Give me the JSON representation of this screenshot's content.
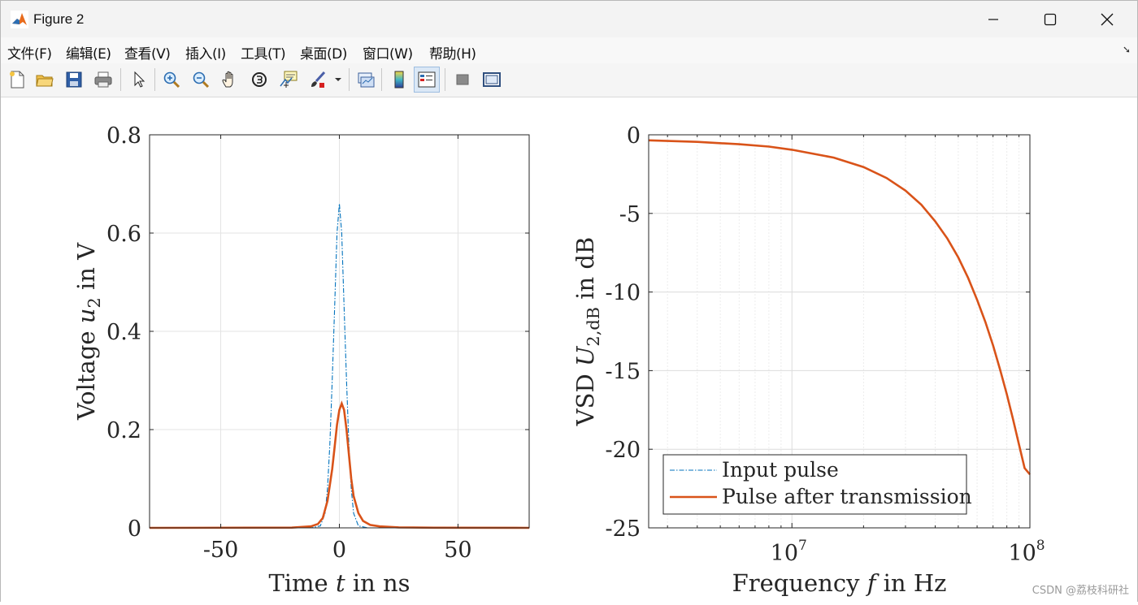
{
  "window": {
    "title": "Figure 2"
  },
  "menu": [
    "文件(F)",
    "编辑(E)",
    "查看(V)",
    "插入(I)",
    "工具(T)",
    "桌面(D)",
    "窗口(W)",
    "帮助(H)"
  ],
  "toolbar": {
    "icons": [
      "new-figure-icon",
      "open-file-icon",
      "save-icon",
      "print-icon",
      "select-arrow-icon",
      "zoom-in-icon",
      "zoom-out-icon",
      "pan-hand-icon",
      "rotate-3d-icon",
      "data-cursor-icon",
      "brush-icon",
      "link-plot-icon",
      "colorbar-icon",
      "legend-icon",
      "hide-plot-tools-icon",
      "show-plot-tools-icon"
    ]
  },
  "watermark": "CSDN @荔枝科研社",
  "chart_data": [
    {
      "type": "line",
      "xlabel": "Time t in ns",
      "ylabel": "Voltage u2 in V",
      "xlim": [
        -80,
        80
      ],
      "ylim": [
        0,
        0.8
      ],
      "xticks": [
        -50,
        0,
        50
      ],
      "xtick_labels": [
        "-50",
        "0",
        "50"
      ],
      "yticks": [
        0,
        0.2,
        0.4,
        0.6,
        0.8
      ],
      "ytick_labels": [
        "0",
        "0.2",
        "0.4",
        "0.6",
        "0.8"
      ],
      "grid": true,
      "series": [
        {
          "name": "Input pulse",
          "color": "#0072BD",
          "style": "dash-dot",
          "x": [
            -80,
            -12,
            -8,
            -6,
            -5,
            -4,
            -3,
            -2,
            -1,
            0,
            1,
            2,
            3,
            4,
            5,
            6,
            8,
            12,
            80
          ],
          "y": [
            0,
            0,
            0.004,
            0.03,
            0.08,
            0.17,
            0.3,
            0.45,
            0.6,
            0.66,
            0.6,
            0.45,
            0.3,
            0.17,
            0.08,
            0.03,
            0.004,
            0,
            0
          ]
        },
        {
          "name": "Pulse after transmission",
          "color": "#D95319",
          "style": "solid",
          "x": [
            -80,
            -20,
            -12,
            -9,
            -7,
            -5,
            -3,
            -2,
            -1,
            0,
            1,
            2,
            3,
            4,
            5,
            6,
            8,
            10,
            13,
            17,
            25,
            40,
            80
          ],
          "y": [
            0,
            0.0005,
            0.003,
            0.008,
            0.02,
            0.055,
            0.12,
            0.165,
            0.21,
            0.24,
            0.253,
            0.24,
            0.2,
            0.15,
            0.1,
            0.065,
            0.03,
            0.014,
            0.006,
            0.003,
            0.001,
            0.0003,
            0
          ]
        }
      ]
    },
    {
      "type": "line",
      "xlabel": "Frequency f in Hz",
      "ylabel": "VSD U2,dB in dB",
      "xscale": "log",
      "xlim": [
        2500000,
        100000000
      ],
      "ylim": [
        -25,
        0
      ],
      "xticks": [
        10000000,
        100000000
      ],
      "xtick_labels": [
        "10",
        "10"
      ],
      "xtick_exponents": [
        "7",
        "8"
      ],
      "yticks": [
        0,
        -5,
        -10,
        -15,
        -20,
        -25
      ],
      "ytick_labels": [
        "0",
        "-5",
        "-10",
        "-15",
        "-20",
        "-25"
      ],
      "grid": true,
      "legend_position": "bottom-left",
      "legend": [
        "Input pulse",
        "Pulse after transmission"
      ],
      "series": [
        {
          "name": "Pulse after transmission",
          "color": "#D95319",
          "style": "solid",
          "x": [
            2500000,
            4000000,
            6000000,
            8000000,
            10000000,
            15000000,
            20000000,
            25000000,
            30000000,
            35000000,
            40000000,
            45000000,
            50000000,
            55000000,
            60000000,
            65000000,
            70000000,
            75000000,
            80000000,
            85000000,
            90000000,
            95000000,
            100000000
          ],
          "y": [
            -0.35,
            -0.45,
            -0.6,
            -0.75,
            -0.95,
            -1.45,
            -2.05,
            -2.75,
            -3.55,
            -4.45,
            -5.5,
            -6.6,
            -7.8,
            -9.1,
            -10.5,
            -11.9,
            -13.4,
            -14.95,
            -16.5,
            -18.1,
            -19.7,
            -21.2,
            -21.6
          ]
        }
      ]
    }
  ]
}
